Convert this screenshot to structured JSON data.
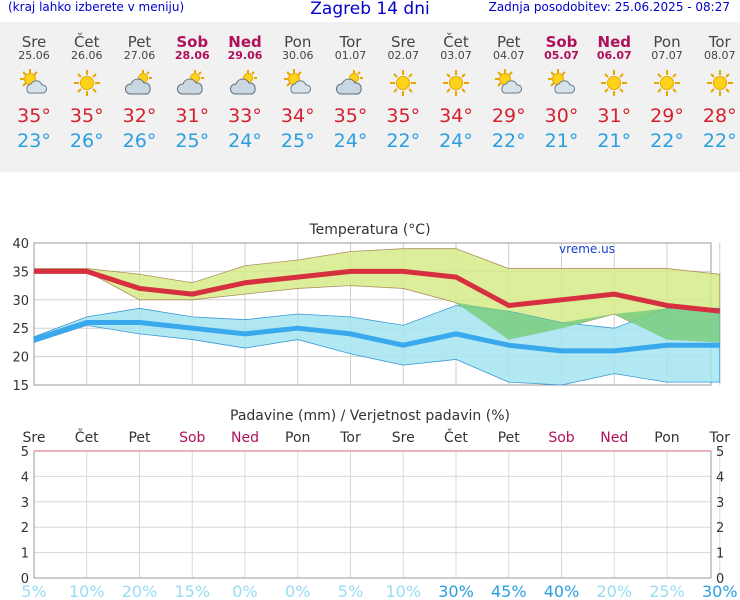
{
  "header": {
    "menu_hint": "(kraj lahko izberete v meniju)",
    "title": "Zagreb 14 dni",
    "updated": "Zadnja posodobitev: 25.06.2025 - 08:27"
  },
  "days": [
    {
      "name": "Sre",
      "date": "25.06",
      "weekend": false,
      "icon": "sun-cloud-icon",
      "max": "35°",
      "min": "23°"
    },
    {
      "name": "Čet",
      "date": "26.06",
      "weekend": false,
      "icon": "sun-icon",
      "max": "35°",
      "min": "26°"
    },
    {
      "name": "Pet",
      "date": "27.06",
      "weekend": false,
      "icon": "cloudy-icon",
      "max": "32°",
      "min": "26°"
    },
    {
      "name": "Sob",
      "date": "28.06",
      "weekend": true,
      "icon": "cloudy-icon",
      "max": "31°",
      "min": "25°"
    },
    {
      "name": "Ned",
      "date": "29.06",
      "weekend": true,
      "icon": "cloudy-icon",
      "max": "33°",
      "min": "24°"
    },
    {
      "name": "Pon",
      "date": "30.06",
      "weekend": false,
      "icon": "sun-cloud-icon",
      "max": "34°",
      "min": "25°"
    },
    {
      "name": "Tor",
      "date": "01.07",
      "weekend": false,
      "icon": "cloudy-icon",
      "max": "35°",
      "min": "24°"
    },
    {
      "name": "Sre",
      "date": "02.07",
      "weekend": false,
      "icon": "sun-icon",
      "max": "35°",
      "min": "22°"
    },
    {
      "name": "Čet",
      "date": "03.07",
      "weekend": false,
      "icon": "sun-icon",
      "max": "34°",
      "min": "24°"
    },
    {
      "name": "Pet",
      "date": "04.07",
      "weekend": false,
      "icon": "sun-cloud-icon",
      "max": "29°",
      "min": "22°"
    },
    {
      "name": "Sob",
      "date": "05.07",
      "weekend": true,
      "icon": "sun-cloud-icon",
      "max": "30°",
      "min": "21°"
    },
    {
      "name": "Ned",
      "date": "06.07",
      "weekend": true,
      "icon": "sun-icon",
      "max": "31°",
      "min": "21°"
    },
    {
      "name": "Pon",
      "date": "07.07",
      "weekend": false,
      "icon": "sun-icon",
      "max": "29°",
      "min": "22°"
    },
    {
      "name": "Tor",
      "date": "08.07",
      "weekend": false,
      "icon": "sun-icon",
      "max": "28°",
      "min": "22°"
    }
  ],
  "chart_data": [
    {
      "type": "line",
      "title": "Temperatura (°C)",
      "watermark": "vreme.us",
      "ylim": [
        15,
        40
      ],
      "yticks": [
        15,
        20,
        25,
        30,
        35,
        40
      ],
      "grid": true,
      "series": [
        {
          "role": "max",
          "color": "#d63040",
          "values": [
            35,
            35,
            32,
            31,
            33,
            34,
            35,
            35,
            34,
            29,
            30,
            31,
            29,
            28
          ]
        },
        {
          "role": "min",
          "color": "#3aa8ec",
          "values": [
            23,
            26,
            26,
            25,
            24,
            25,
            24,
            22,
            24,
            22,
            21,
            21,
            22,
            22
          ]
        }
      ],
      "bands": [
        {
          "role": "max-range",
          "color": "#d6eb88",
          "upper": [
            35.5,
            35.5,
            34.5,
            33,
            36,
            37,
            38.5,
            39,
            39,
            35.5,
            35.5,
            35.5,
            35.5,
            34.5
          ],
          "lower": [
            35.5,
            35,
            30,
            30,
            31,
            32,
            32.5,
            32,
            29.5,
            23,
            25,
            27.5,
            23,
            22.5
          ]
        },
        {
          "role": "min-range",
          "color": "#a4e4f0",
          "upper": [
            23.5,
            27,
            28.5,
            27,
            26.5,
            27.5,
            27,
            25.5,
            29,
            28,
            26,
            25,
            28.5,
            28.5
          ],
          "lower": [
            22.5,
            25.5,
            24,
            23,
            21.5,
            23,
            20.5,
            18.5,
            19.5,
            15.5,
            15,
            17,
            15.5,
            15.5
          ]
        }
      ]
    },
    {
      "type": "bar",
      "title": "Padavine (mm) / Verjetnost padavin (%)",
      "categories": [
        "Sre",
        "Čet",
        "Pet",
        "Sob",
        "Ned",
        "Pon",
        "Tor",
        "Sre",
        "Čet",
        "Pet",
        "Sob",
        "Ned",
        "Pon",
        "Tor"
      ],
      "weekend": [
        false,
        false,
        false,
        true,
        true,
        false,
        false,
        false,
        false,
        false,
        true,
        true,
        false,
        false
      ],
      "ylim": [
        0,
        5
      ],
      "yticks": [
        0,
        1,
        2,
        3,
        4,
        5
      ],
      "values": [
        0,
        0,
        0,
        0,
        0,
        0,
        0,
        0,
        0,
        0,
        0,
        0,
        0,
        0
      ],
      "probability": [
        "5%",
        "10%",
        "20%",
        "15%",
        "0%",
        "0%",
        "5%",
        "10%",
        "30%",
        "45%",
        "40%",
        "20%",
        "25%",
        "30%"
      ],
      "probability_values": [
        5,
        10,
        20,
        15,
        0,
        0,
        5,
        10,
        30,
        45,
        40,
        20,
        25,
        30
      ]
    }
  ]
}
